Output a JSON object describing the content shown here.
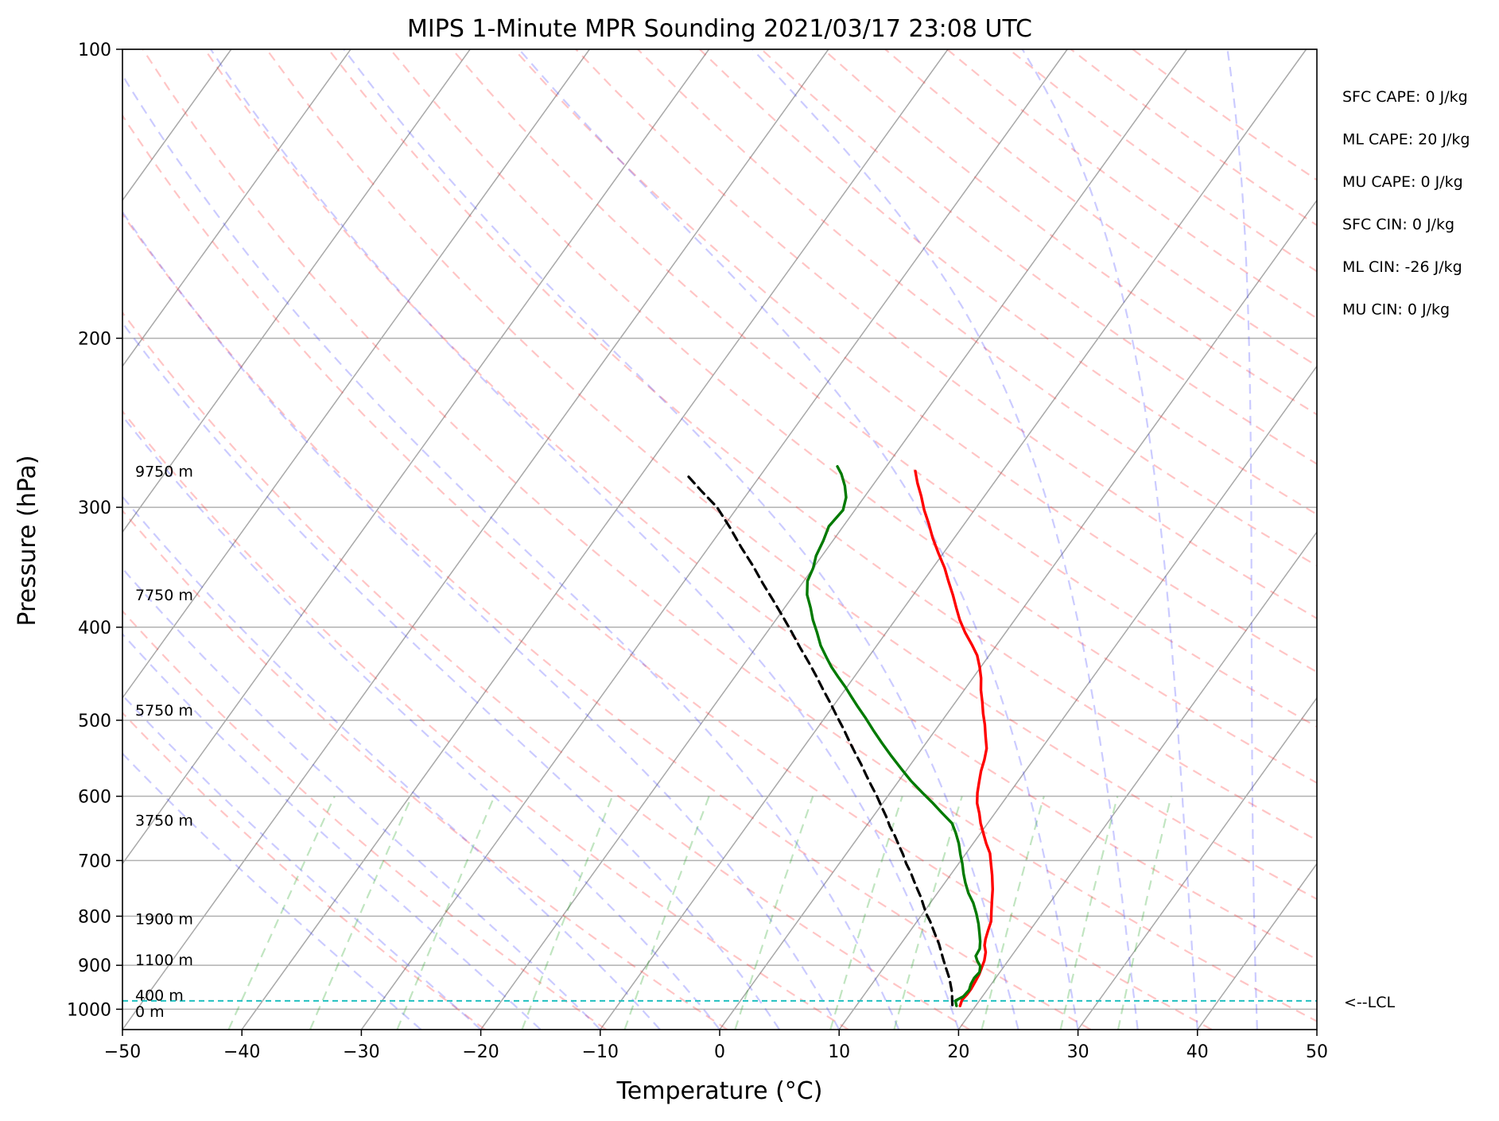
{
  "chart_data": {
    "type": "skew-t",
    "title": "MIPS 1-Minute MPR Sounding 2021/03/17 23:08 UTC",
    "xlabel": "Temperature (°C)",
    "ylabel": "Pressure (hPa)",
    "xlim": [
      -50,
      50
    ],
    "ylim": [
      1050,
      100
    ],
    "yscale": "log",
    "x_ticks": [
      -50,
      -40,
      -30,
      -20,
      -10,
      0,
      10,
      20,
      30,
      40,
      50
    ],
    "x_tick_labels": [
      "−50",
      "−40",
      "−30",
      "−20",
      "−10",
      "0",
      "10",
      "20",
      "30",
      "40",
      "50"
    ],
    "y_ticks": [
      100,
      200,
      300,
      400,
      500,
      600,
      700,
      800,
      900,
      1000
    ],
    "y_tick_labels": [
      "100",
      "200",
      "300",
      "400",
      "500",
      "600",
      "700",
      "800",
      "900",
      "1000"
    ],
    "grid": true,
    "height_labels": [
      {
        "text": "9750 m",
        "p": 275
      },
      {
        "text": "7750 m",
        "p": 370
      },
      {
        "text": "5750 m",
        "p": 488
      },
      {
        "text": "3750 m",
        "p": 635
      },
      {
        "text": "1900 m",
        "p": 805
      },
      {
        "text": "1100 m",
        "p": 888
      },
      {
        "text": "400 m",
        "p": 966
      },
      {
        "text": "0 m",
        "p": 1005
      }
    ],
    "stats": [
      "SFC CAPE: 0 J/kg",
      "ML CAPE: 20 J/kg",
      "MU CAPE: 0 J/kg",
      "SFC CIN: 0 J/kg",
      "ML CIN: -26 J/kg",
      "MU CIN: 0 J/kg"
    ],
    "lcl": {
      "label": "<--LCL",
      "pressure": 980,
      "color": "#20c0c0"
    },
    "series": [
      {
        "color": "#ff0000",
        "points": [
          [
            18.7,
            992
          ],
          [
            18.5,
            978
          ],
          [
            18.6,
            965
          ],
          [
            18.6,
            952
          ],
          [
            18.5,
            935
          ],
          [
            18.4,
            920
          ],
          [
            18.2,
            905
          ],
          [
            18.0,
            890
          ],
          [
            17.6,
            872
          ],
          [
            17.1,
            858
          ],
          [
            16.8,
            845
          ],
          [
            16.5,
            828
          ],
          [
            16.2,
            810
          ],
          [
            15.6,
            790
          ],
          [
            15.0,
            770
          ],
          [
            14.4,
            750
          ],
          [
            13.5,
            725
          ],
          [
            12.7,
            705
          ],
          [
            12.0,
            688
          ],
          [
            11.1,
            672
          ],
          [
            10.2,
            655
          ],
          [
            9.4,
            640
          ],
          [
            8.7,
            625
          ],
          [
            7.9,
            610
          ],
          [
            7.3,
            595
          ],
          [
            6.8,
            580
          ],
          [
            6.3,
            565
          ],
          [
            5.9,
            550
          ],
          [
            5.4,
            535
          ],
          [
            4.6,
            520
          ],
          [
            3.8,
            505
          ],
          [
            3.0,
            492
          ],
          [
            2.2,
            478
          ],
          [
            1.4,
            465
          ],
          [
            0.7,
            452
          ],
          [
            -0.1,
            440
          ],
          [
            -1.0,
            428
          ],
          [
            -2.1,
            417
          ],
          [
            -3.4,
            405
          ],
          [
            -4.6,
            393
          ],
          [
            -5.6,
            382
          ],
          [
            -6.7,
            370
          ],
          [
            -7.9,
            358
          ],
          [
            -9.0,
            347
          ],
          [
            -10.4,
            335
          ],
          [
            -11.8,
            323
          ],
          [
            -13.0,
            312
          ],
          [
            -14.2,
            302
          ],
          [
            -15.3,
            292
          ],
          [
            -16.4,
            283
          ],
          [
            -17.3,
            275
          ]
        ]
      },
      {
        "color": "#007a00",
        "points": [
          [
            18.4,
            992
          ],
          [
            18.0,
            980
          ],
          [
            18.4,
            970
          ],
          [
            18.5,
            955
          ],
          [
            18.3,
            942
          ],
          [
            18.2,
            928
          ],
          [
            18.3,
            915
          ],
          [
            18.0,
            902
          ],
          [
            17.4,
            890
          ],
          [
            17.0,
            880
          ],
          [
            16.9,
            865
          ],
          [
            16.5,
            850
          ],
          [
            16.0,
            835
          ],
          [
            15.3,
            815
          ],
          [
            14.5,
            795
          ],
          [
            13.6,
            775
          ],
          [
            12.6,
            757
          ],
          [
            11.7,
            738
          ],
          [
            11.0,
            722
          ],
          [
            10.3,
            705
          ],
          [
            9.6,
            690
          ],
          [
            8.8,
            672
          ],
          [
            7.9,
            655
          ],
          [
            7.0,
            640
          ],
          [
            5.6,
            625
          ],
          [
            4.2,
            610
          ],
          [
            2.7,
            595
          ],
          [
            1.0,
            578
          ],
          [
            -0.5,
            562
          ],
          [
            -2.1,
            545
          ],
          [
            -3.7,
            528
          ],
          [
            -5.2,
            512
          ],
          [
            -6.6,
            497
          ],
          [
            -7.9,
            484
          ],
          [
            -9.1,
            472
          ],
          [
            -10.1,
            462
          ],
          [
            -11.3,
            451
          ],
          [
            -12.5,
            440
          ],
          [
            -13.5,
            430
          ],
          [
            -14.7,
            418
          ],
          [
            -15.8,
            405
          ],
          [
            -16.9,
            393
          ],
          [
            -17.8,
            382
          ],
          [
            -18.9,
            370
          ],
          [
            -19.7,
            358
          ],
          [
            -20.0,
            347
          ],
          [
            -20.5,
            337
          ],
          [
            -20.8,
            325
          ],
          [
            -21.2,
            314
          ],
          [
            -21.0,
            302
          ],
          [
            -21.5,
            293
          ],
          [
            -22.3,
            285
          ],
          [
            -23.3,
            277
          ],
          [
            -24.1,
            272
          ]
        ]
      },
      {
        "color": "#000000",
        "dashed": true,
        "points": [
          [
            18.0,
            990
          ],
          [
            17.6,
            975
          ],
          [
            17.2,
            960
          ],
          [
            16.7,
            945
          ],
          [
            16.2,
            930
          ],
          [
            15.6,
            915
          ],
          [
            15.0,
            900
          ],
          [
            14.4,
            885
          ],
          [
            13.8,
            870
          ],
          [
            13.2,
            855
          ],
          [
            12.5,
            840
          ],
          [
            11.8,
            825
          ],
          [
            11.1,
            810
          ],
          [
            10.3,
            795
          ],
          [
            9.6,
            780
          ],
          [
            8.9,
            765
          ],
          [
            8.1,
            750
          ],
          [
            7.3,
            735
          ],
          [
            6.5,
            720
          ],
          [
            5.6,
            705
          ],
          [
            4.8,
            690
          ],
          [
            3.9,
            675
          ],
          [
            3.0,
            660
          ],
          [
            2.0,
            645
          ],
          [
            1.1,
            630
          ],
          [
            0.1,
            615
          ],
          [
            -0.9,
            600
          ],
          [
            -2.0,
            585
          ],
          [
            -3.1,
            570
          ],
          [
            -4.2,
            555
          ],
          [
            -5.4,
            540
          ],
          [
            -6.6,
            525
          ],
          [
            -7.8,
            510
          ],
          [
            -9.1,
            495
          ],
          [
            -10.4,
            480
          ],
          [
            -11.8,
            465
          ],
          [
            -13.2,
            450
          ],
          [
            -14.7,
            435
          ],
          [
            -16.3,
            420
          ],
          [
            -17.9,
            405
          ],
          [
            -19.6,
            390
          ],
          [
            -21.4,
            375
          ],
          [
            -23.3,
            360
          ],
          [
            -25.2,
            345
          ],
          [
            -27.3,
            330
          ],
          [
            -29.4,
            315
          ],
          [
            -31.7,
            300
          ],
          [
            -34.1,
            288
          ],
          [
            -36.1,
            278
          ]
        ]
      }
    ]
  }
}
